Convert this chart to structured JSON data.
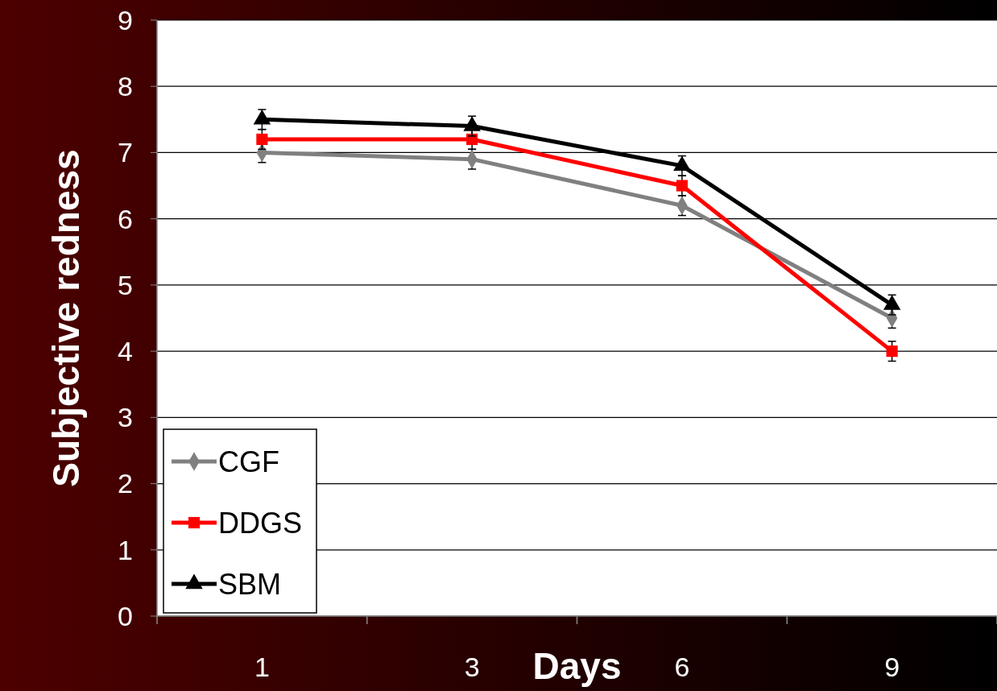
{
  "chart_data": {
    "type": "line",
    "xlabel": "Days",
    "ylabel": "Subjective redness",
    "categories": [
      "1",
      "3",
      "6",
      "9"
    ],
    "ylim": [
      0,
      9
    ],
    "yticks": [
      0,
      1,
      2,
      3,
      4,
      5,
      6,
      7,
      8,
      9
    ],
    "grid": "y",
    "legend": "bottom left",
    "line_style": "solid",
    "series": [
      {
        "name": "CGF",
        "color": "#808080",
        "marker": "diamond",
        "values": [
          7.0,
          6.9,
          6.2,
          4.5
        ],
        "errors": [
          0.15,
          0.15,
          0.15,
          0.15
        ]
      },
      {
        "name": "DDGS",
        "color": "#ff0000",
        "marker": "square",
        "values": [
          7.2,
          7.2,
          6.5,
          4.0
        ],
        "errors": [
          0.15,
          0.15,
          0.15,
          0.15
        ]
      },
      {
        "name": "SBM",
        "color": "#000000",
        "marker": "triangle",
        "values": [
          7.5,
          7.4,
          6.8,
          4.7
        ],
        "errors": [
          0.15,
          0.15,
          0.15,
          0.15
        ]
      }
    ]
  }
}
